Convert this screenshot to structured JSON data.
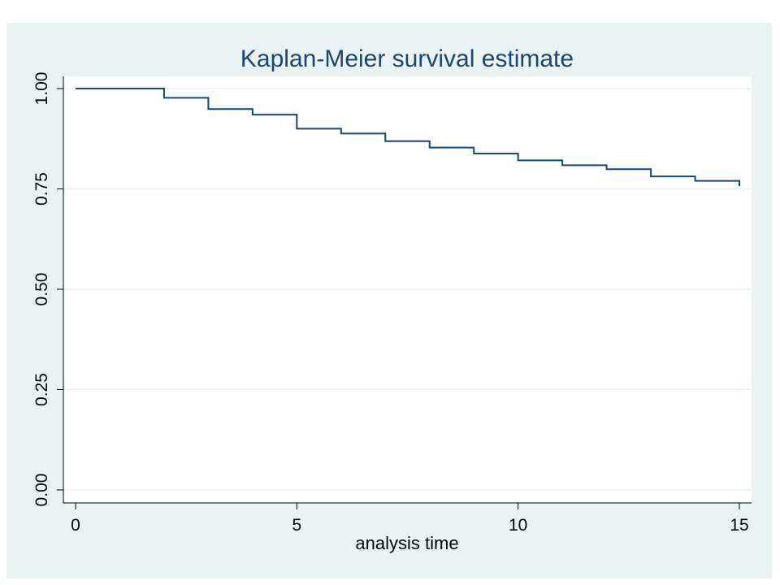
{
  "chart_data": {
    "type": "line",
    "step": true,
    "title": "Kaplan-Meier survival estimate",
    "xlabel": "analysis time",
    "ylabel": "",
    "xlim": [
      0,
      15
    ],
    "ylim": [
      0,
      1
    ],
    "xticks": [
      0,
      5,
      10,
      15
    ],
    "xtick_labels": [
      "0",
      "5",
      "10",
      "15"
    ],
    "yticks": [
      0,
      0.25,
      0.5,
      0.75,
      1
    ],
    "ytick_labels": [
      "0.00",
      "0.25",
      "0.50",
      "0.75",
      "1.00"
    ],
    "grid": true,
    "legend": false,
    "series": [
      {
        "x": [
          0,
          2,
          3,
          4,
          5,
          6,
          7,
          8,
          9,
          10,
          11,
          12,
          13,
          14,
          15
        ],
        "y": [
          1.0,
          0.977,
          0.949,
          0.935,
          0.9,
          0.888,
          0.869,
          0.853,
          0.838,
          0.821,
          0.809,
          0.799,
          0.781,
          0.77,
          0.757
        ]
      }
    ],
    "colors": {
      "outer_background": "#eaf2f3",
      "plot_background": "#ffffff",
      "grid": "#eaf2f3",
      "line": "#1a476f",
      "text": "#1a476f",
      "axis": "#000000"
    }
  }
}
